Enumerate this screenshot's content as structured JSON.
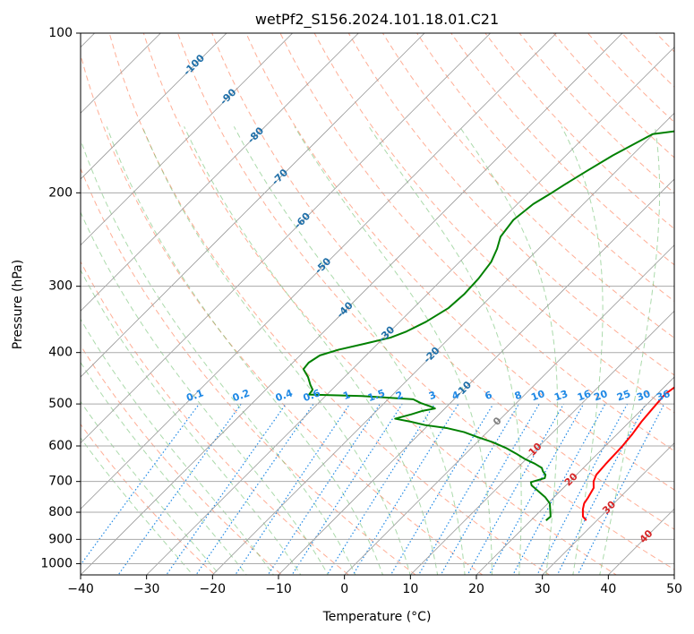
{
  "chart_data": {
    "type": "line",
    "title": "wetPf2_S156.2024.101.18.01.C21",
    "xlabel": "Temperature (°C)",
    "ylabel": "Pressure (hPa)",
    "xlim": [
      -40,
      50
    ],
    "ylim": [
      1050,
      100
    ],
    "y_scale": "log",
    "grid": true,
    "x_ticks": [
      -40,
      -30,
      -20,
      -10,
      0,
      10,
      20,
      30,
      40,
      50
    ],
    "y_ticks": [
      100,
      200,
      300,
      400,
      500,
      600,
      700,
      800,
      900,
      1000
    ],
    "colors": {
      "temperature": "#ff0000",
      "dewpoint": "#008000",
      "dry_adiabat": "#ff8c69",
      "moist_adiabat": "#66bb66",
      "mixing_ratio": "#1e88e5",
      "isotherm_label_cold": "#1f6fa8",
      "isotherm_label_warm": "#d62728",
      "isotherm_label_zero": "#808080"
    },
    "isotherm_labels": [
      "-100",
      "-90",
      "-80",
      "-70",
      "-60",
      "-50",
      "-40",
      "-30",
      "-20",
      "-10",
      "0",
      "10",
      "20",
      "30",
      "40"
    ],
    "isotherm_label_points": [
      {
        "T": -100,
        "p": 115
      },
      {
        "T": -90,
        "p": 132
      },
      {
        "T": -80,
        "p": 156
      },
      {
        "T": -70,
        "p": 187
      },
      {
        "T": -60,
        "p": 226
      },
      {
        "T": -50,
        "p": 275
      },
      {
        "T": -40,
        "p": 333
      },
      {
        "T": -30,
        "p": 370
      },
      {
        "T": -20,
        "p": 405
      },
      {
        "T": -10,
        "p": 470
      },
      {
        "T": 0,
        "p": 540
      },
      {
        "T": 10,
        "p": 610
      },
      {
        "T": 20,
        "p": 695
      },
      {
        "T": 30,
        "p": 785
      },
      {
        "T": 40,
        "p": 890
      }
    ],
    "mixing_ratio_labels": [
      "0.1",
      "0.2",
      "0.4",
      "0.6",
      "1",
      "1.5",
      "2",
      "3",
      "4",
      "6",
      "8",
      "10",
      "13",
      "16",
      "20",
      "25",
      "30",
      "36"
    ],
    "mixing_ratio_label_x": [
      -22.5,
      -15.5,
      -9,
      -4.8,
      0.5,
      5,
      8.5,
      13.5,
      17,
      22,
      26.5,
      29.5,
      33,
      36.5,
      39,
      42.5,
      45.5,
      48.5
    ],
    "series": [
      {
        "name": "temperature",
        "points": [
          [
            28.4,
            829
          ],
          [
            27.3,
            815
          ],
          [
            26.2,
            790
          ],
          [
            25.5,
            770
          ],
          [
            25.2,
            750
          ],
          [
            24.6,
            720
          ],
          [
            23.6,
            700
          ],
          [
            23.0,
            680
          ],
          [
            22.8,
            650
          ],
          [
            22.6,
            600
          ],
          [
            22.3,
            570
          ],
          [
            21.8,
            540
          ],
          [
            21.5,
            510
          ],
          [
            21.2,
            480
          ],
          [
            21.6,
            465
          ],
          [
            22.6,
            450
          ],
          [
            22.6,
            430
          ],
          [
            21.9,
            415
          ],
          [
            20.4,
            400
          ],
          [
            20.2,
            390
          ],
          [
            18.5,
            370
          ],
          [
            16.8,
            350
          ],
          [
            15.8,
            335
          ],
          [
            13.4,
            305
          ],
          [
            12.0,
            285
          ],
          [
            10.6,
            265
          ],
          [
            10.0,
            255
          ],
          [
            8.6,
            238
          ],
          [
            7.0,
            222
          ],
          [
            5.8,
            210
          ],
          [
            4.2,
            195
          ],
          [
            2.7,
            180
          ],
          [
            1.6,
            170
          ],
          [
            0.2,
            158
          ],
          [
            -0.6,
            150
          ],
          [
            -1.6,
            140
          ],
          [
            -1.7,
            130
          ],
          [
            -1.4,
            125
          ],
          [
            -1.1,
            118
          ],
          [
            -0.6,
            112
          ],
          [
            -0.6,
            105
          ],
          [
            -0.3,
            100
          ]
        ]
      },
      {
        "name": "dewpoint",
        "points": [
          [
            22.3,
            829
          ],
          [
            22.4,
            815
          ],
          [
            20.3,
            770
          ],
          [
            18.7,
            750
          ],
          [
            14.8,
            712
          ],
          [
            14.2,
            702
          ],
          [
            15.7,
            690
          ],
          [
            15.3,
            680
          ],
          [
            14.4,
            670
          ],
          [
            13.7,
            660
          ],
          [
            12.0,
            648
          ],
          [
            9.8,
            635
          ],
          [
            7.6,
            620
          ],
          [
            5.2,
            605
          ],
          [
            2.3,
            590
          ],
          [
            -0.8,
            577
          ],
          [
            -3.5,
            565
          ],
          [
            -6.8,
            555
          ],
          [
            -10.5,
            548
          ],
          [
            -13.2,
            540
          ],
          [
            -16.0,
            533
          ],
          [
            -14.2,
            523
          ],
          [
            -13.0,
            515
          ],
          [
            -11.5,
            510
          ],
          [
            -12.6,
            505
          ],
          [
            -14.5,
            498
          ],
          [
            -16.2,
            490
          ],
          [
            -24.5,
            483
          ],
          [
            -32.7,
            480
          ],
          [
            -32.9,
            470
          ],
          [
            -34.0,
            460
          ],
          [
            -35.5,
            445
          ],
          [
            -37.4,
            430
          ],
          [
            -37.6,
            418
          ],
          [
            -37.0,
            405
          ],
          [
            -35.0,
            395
          ],
          [
            -32.0,
            385
          ],
          [
            -29.0,
            375
          ],
          [
            -27.5,
            365
          ],
          [
            -26.0,
            350
          ],
          [
            -24.7,
            330
          ],
          [
            -24.4,
            310
          ],
          [
            -24.6,
            290
          ],
          [
            -25.2,
            270
          ],
          [
            -26.3,
            255
          ],
          [
            -27.6,
            242
          ],
          [
            -28.2,
            225
          ],
          [
            -27.6,
            210
          ],
          [
            -26.5,
            200
          ],
          [
            -25.8,
            193
          ],
          [
            -24.5,
            182
          ],
          [
            -22.9,
            170
          ],
          [
            -20.1,
            155
          ],
          [
            -15.6,
            152
          ],
          [
            -9.7,
            148
          ],
          [
            -6.0,
            142
          ],
          [
            -4.5,
            135
          ],
          [
            -4.2,
            130
          ],
          [
            -3.2,
            125
          ],
          [
            -1.4,
            118
          ],
          [
            -1.7,
            112
          ],
          [
            -1.9,
            105
          ],
          [
            -1.2,
            100
          ]
        ]
      }
    ]
  }
}
